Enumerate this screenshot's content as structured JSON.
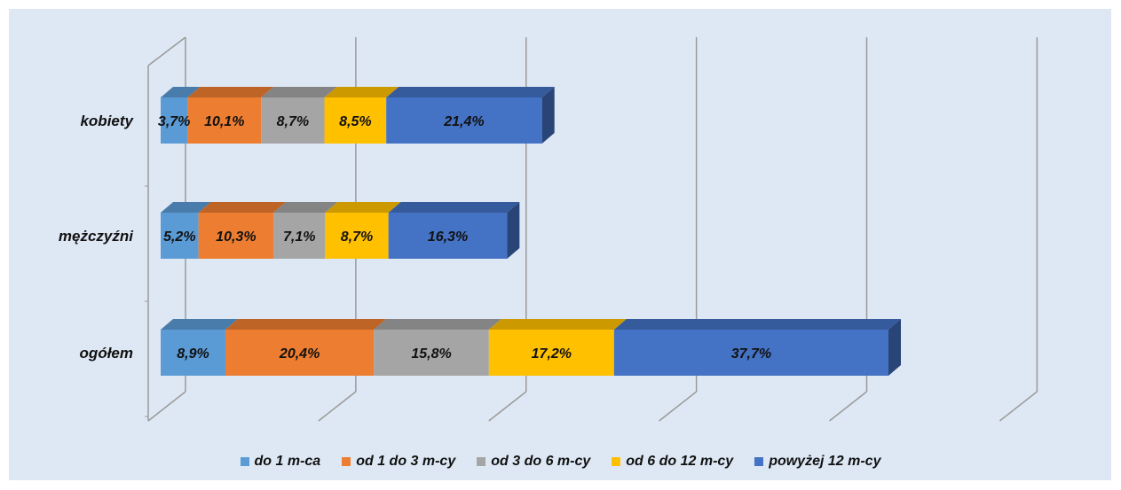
{
  "chart_data": {
    "type": "bar",
    "orientation": "horizontal",
    "stacked": true,
    "three_d": true,
    "title": "",
    "xlabel": "",
    "ylabel": "",
    "categories": [
      "kobiety",
      "mężczyźni",
      "ogółem"
    ],
    "xlim": [
      0,
      120
    ],
    "grid": true,
    "legend_position": "bottom",
    "series": [
      {
        "name": "do 1 m-ca",
        "color": "#5b9bd5",
        "values": [
          3.7,
          5.2,
          8.9
        ],
        "labels": [
          "3,7%",
          "5,2%",
          "8,9%"
        ]
      },
      {
        "name": "od 1 do 3 m-cy",
        "color": "#ed7d31",
        "values": [
          10.1,
          10.3,
          20.4
        ],
        "labels": [
          "10,1%",
          "10,3%",
          "20,4%"
        ]
      },
      {
        "name": "od 3 do 6 m-cy",
        "color": "#a5a5a5",
        "values": [
          8.7,
          7.1,
          15.8
        ],
        "labels": [
          "8,7%",
          "7,1%",
          "15,8%"
        ]
      },
      {
        "name": "od 6 do 12 m-cy",
        "color": "#ffc000",
        "values": [
          8.5,
          8.7,
          17.2
        ],
        "labels": [
          "8,5%",
          "8,7%",
          "17,2%"
        ]
      },
      {
        "name": "powyżej 12 m-cy",
        "color": "#4472c4",
        "values": [
          21.4,
          16.3,
          37.7
        ],
        "labels": [
          "21,4%",
          "16,3%",
          "37,7%"
        ]
      }
    ]
  }
}
